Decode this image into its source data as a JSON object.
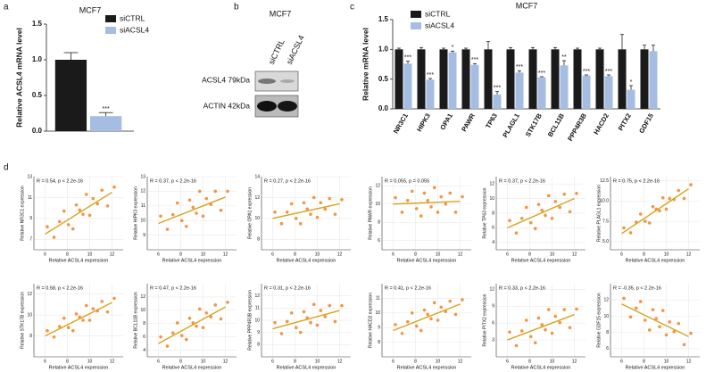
{
  "panel_labels": [
    "a",
    "b",
    "c",
    "d"
  ],
  "blot": {
    "title": "MCF7",
    "lanes": [
      "siCTRL",
      "siACSL4"
    ],
    "bands": [
      "ACSL4 79kDa",
      "ACTIN 42kDa"
    ]
  },
  "chart_data": [
    {
      "type": "bar",
      "title": "MCF7",
      "y_label": "Relative ACSL4 mRNA level",
      "legend": "upper right",
      "ylim": [
        0,
        1.5
      ],
      "yticks": [
        {
          "value": 0,
          "label": "0.0"
        },
        {
          "value": 0.5,
          "label": "0.5"
        },
        {
          "value": 1,
          "label": "1.0"
        },
        {
          "value": 1.5,
          "label": "1.5"
        }
      ],
      "series": [
        {
          "name": "siCTRL",
          "color": "#1a1a1a",
          "values": [
            1.0
          ],
          "errors": [
            0.1
          ]
        },
        {
          "name": "siACSL4",
          "color": "#a5bde3",
          "values": [
            0.21
          ],
          "errors": [
            0.05
          ],
          "annotations": [
            "***"
          ]
        }
      ]
    },
    {
      "type": "bar",
      "title": "MCF7",
      "y_label": "Relative mRNA level",
      "legend": "upper left",
      "categories": [
        "NR3C1",
        "HIPK3",
        "OPA1",
        "PAWR",
        "TP63",
        "PLAGL1",
        "STK17B",
        "BCL11B",
        "PPP4R3B",
        "HACD2",
        "PITX2",
        "GDF15"
      ],
      "ylim": [
        0,
        1.5
      ],
      "yticks": [
        {
          "value": 0,
          "label": "0.0"
        },
        {
          "value": 0.5,
          "label": "0.5"
        },
        {
          "value": 1,
          "label": "1.0"
        },
        {
          "value": 1.5,
          "label": "1.5"
        }
      ],
      "series": [
        {
          "name": "siCTRL",
          "color": "#1a1a1a",
          "values": [
            1.0,
            1.0,
            1.0,
            1.0,
            1.0,
            1.0,
            1.0,
            1.0,
            1.0,
            1.0,
            1.0,
            1.0
          ],
          "errors": [
            0.02,
            0.03,
            0.02,
            0.02,
            0.13,
            0.03,
            0.03,
            0.03,
            0.02,
            0.02,
            0.25,
            0.07
          ]
        },
        {
          "name": "siACSL4",
          "color": "#a5bde3",
          "values": [
            0.76,
            0.49,
            0.95,
            0.74,
            0.24,
            0.61,
            0.53,
            0.73,
            0.56,
            0.55,
            0.32,
            0.97
          ],
          "errors": [
            0.04,
            0.02,
            0.02,
            0.02,
            0.05,
            0.03,
            0.01,
            0.08,
            0.01,
            0.02,
            0.07,
            0.1
          ],
          "annotations": [
            "***",
            "***",
            "*",
            "***",
            "***",
            "***",
            "***",
            "**",
            "***",
            "***",
            "*",
            null
          ]
        }
      ]
    },
    {
      "type": "scatter",
      "title": "R = 0.54, p < 2.2e-16",
      "x_label": "Relative ACSL4 expression",
      "y_label": "Relative NR3C1 expression",
      "grid": true,
      "color": "#f28a30",
      "fit_color": "#d9a21b",
      "xlim": [
        5,
        13
      ],
      "xticks": [
        6,
        8,
        10,
        12
      ],
      "ylim": [
        6,
        13
      ],
      "yticks": [
        7,
        9,
        11,
        13
      ],
      "x": [
        6.2,
        6.8,
        7.3,
        7.7,
        8.1,
        8.5,
        8.8,
        9.1,
        9.4,
        9.7,
        10.0,
        10.3,
        10.7,
        11.1,
        11.6,
        12.2
      ],
      "y": [
        8.2,
        7.2,
        8.7,
        9.7,
        8.4,
        8.0,
        10.3,
        9.8,
        9.4,
        11.3,
        9.3,
        10.9,
        10.4,
        11.7,
        10.2,
        12.0
      ],
      "fit": {
        "x": [
          6,
          12
        ],
        "y": [
          7.5,
          11.5
        ]
      }
    },
    {
      "type": "scatter",
      "title": "R = 0.37, p < 2.2e-16",
      "x_label": "Relative ACSL4 expression",
      "y_label": "Relative HIPK3 expression",
      "grid": true,
      "color": "#f28a30",
      "fit_color": "#d9a21b",
      "xlim": [
        5,
        13
      ],
      "xticks": [
        6,
        8,
        10,
        12
      ],
      "ylim": [
        8,
        13
      ],
      "yticks": [
        9,
        10,
        11,
        12,
        13
      ],
      "x": [
        6.2,
        6.8,
        7.3,
        7.7,
        8.1,
        8.5,
        8.8,
        9.1,
        9.4,
        9.7,
        10.0,
        10.3,
        10.7,
        11.1,
        11.6,
        12.2
      ],
      "y": [
        10.3,
        9.4,
        10.4,
        11.2,
        10.0,
        9.6,
        11.4,
        10.9,
        10.5,
        12.0,
        10.3,
        11.5,
        11.1,
        12.0,
        10.7,
        12.0
      ],
      "fit": {
        "x": [
          6,
          12
        ],
        "y": [
          9.8,
          11.6
        ]
      }
    },
    {
      "type": "scatter",
      "title": "R = 0.27, p < 2.2e-16",
      "x_label": "Relative ACSL4 expression",
      "y_label": "Relative OPA1 expression",
      "grid": true,
      "color": "#f28a30",
      "fit_color": "#d9a21b",
      "xlim": [
        5,
        13
      ],
      "xticks": [
        6,
        8,
        10,
        12
      ],
      "ylim": [
        7,
        14
      ],
      "yticks": [
        8,
        10,
        12,
        14
      ],
      "x": [
        6.2,
        6.8,
        7.3,
        7.7,
        8.1,
        8.5,
        8.8,
        9.1,
        9.4,
        9.7,
        10.0,
        10.3,
        10.7,
        11.1,
        11.6,
        12.2
      ],
      "y": [
        10.6,
        9.5,
        10.6,
        11.4,
        10.0,
        9.5,
        11.5,
        10.9,
        10.4,
        12.0,
        10.1,
        11.5,
        10.9,
        11.9,
        10.4,
        11.8
      ],
      "fit": {
        "x": [
          6,
          12
        ],
        "y": [
          10.0,
          11.4
        ]
      }
    },
    {
      "type": "scatter",
      "title": "R = 0.055, p = 0.055",
      "x_label": "Relative ACSL4 expression",
      "y_label": "Relative PAWR expression",
      "grid": true,
      "color": "#f28a30",
      "fit_color": "#d9a21b",
      "xlim": [
        5,
        13
      ],
      "xticks": [
        6,
        8,
        10,
        12
      ],
      "ylim": [
        5,
        13
      ],
      "yticks": [
        6,
        8,
        10,
        12
      ],
      "x": [
        6.2,
        6.8,
        7.3,
        7.7,
        8.1,
        8.5,
        8.8,
        9.1,
        9.4,
        9.7,
        10.0,
        10.3,
        10.7,
        11.1,
        11.6,
        12.2
      ],
      "y": [
        10.7,
        9.1,
        10.4,
        11.4,
        9.5,
        8.7,
        11.2,
        10.4,
        9.7,
        11.8,
        9.1,
        10.8,
        10.0,
        11.2,
        9.1,
        10.8
      ],
      "fit": {
        "x": [
          6,
          12
        ],
        "y": [
          10.0,
          10.3
        ]
      }
    },
    {
      "type": "scatter",
      "title": "R = 0.37, p < 2.2e-16",
      "x_label": "Relative ACSL4 expression",
      "y_label": "Relative TP63 expression",
      "grid": true,
      "color": "#f28a30",
      "fit_color": "#d9a21b",
      "xlim": [
        5,
        13
      ],
      "xticks": [
        6,
        8,
        10,
        12
      ],
      "ylim": [
        3,
        13
      ],
      "yticks": [
        4,
        6,
        8,
        10,
        12
      ],
      "x": [
        6.2,
        6.8,
        7.3,
        7.7,
        8.1,
        8.5,
        8.8,
        9.1,
        9.4,
        9.7,
        10.0,
        10.3,
        10.7,
        11.1,
        11.6,
        12.2
      ],
      "y": [
        7.0,
        5.3,
        7.3,
        8.8,
        6.7,
        5.9,
        9.2,
        8.4,
        7.7,
        10.4,
        7.3,
        9.6,
        8.8,
        10.6,
        8.2,
        10.7
      ],
      "fit": {
        "x": [
          6,
          12
        ],
        "y": [
          6,
          10
        ]
      }
    },
    {
      "type": "scatter",
      "title": "R = 0.75, p < 2.2e-16",
      "x_label": "Relative ACSL4 expression",
      "y_label": "Relative PLAGL1 expression",
      "grid": true,
      "color": "#f28a30",
      "fit_color": "#d9a21b",
      "xlim": [
        5,
        13
      ],
      "xticks": [
        6,
        8,
        10,
        12
      ],
      "ylim": [
        4,
        13
      ],
      "yticks": [
        {
          "value": 5,
          "label": "5.0"
        },
        {
          "value": 7.5,
          "label": "7.5"
        },
        {
          "value": 10,
          "label": "10.0"
        },
        {
          "value": 12.5,
          "label": "12.5"
        }
      ],
      "x": [
        6.2,
        6.8,
        7.3,
        7.7,
        8.1,
        8.5,
        8.8,
        9.1,
        9.4,
        9.7,
        10.0,
        10.3,
        10.7,
        11.1,
        11.6,
        12.2
      ],
      "y": [
        6.7,
        6.1,
        7.4,
        8.4,
        7.5,
        7.3,
        9.3,
        9.0,
        8.8,
        10.4,
        9.0,
        10.3,
        10.2,
        11.3,
        10.3,
        12.0
      ],
      "fit": {
        "x": [
          6,
          12
        ],
        "y": [
          6,
          11.5
        ]
      }
    },
    {
      "type": "scatter",
      "title": "R = 0.58, p < 2.2e-16",
      "x_label": "Relative ACSL4 expression",
      "y_label": "Relative STK17B expression",
      "grid": true,
      "color": "#f28a30",
      "fit_color": "#d9a21b",
      "xlim": [
        5,
        13
      ],
      "xticks": [
        6,
        8,
        10,
        12
      ],
      "ylim": [
        6,
        13
      ],
      "yticks": [
        8,
        10,
        12
      ],
      "x": [
        6.2,
        6.8,
        7.3,
        7.7,
        8.1,
        8.5,
        8.8,
        9.1,
        9.4,
        9.7,
        10.0,
        10.3,
        10.7,
        11.1,
        11.6,
        12.2
      ],
      "y": [
        8.5,
        7.9,
        8.9,
        9.7,
        8.8,
        8.5,
        10.1,
        9.8,
        9.5,
        10.9,
        9.5,
        10.6,
        10.4,
        11.3,
        10.3,
        11.6
      ],
      "fit": {
        "x": [
          6,
          12
        ],
        "y": [
          8,
          11.2
        ]
      }
    },
    {
      "type": "scatter",
      "title": "R = 0.47, p < 2.2e-16",
      "x_label": "Relative ACSL4 expression",
      "y_label": "Relative BCL11B expression",
      "grid": true,
      "color": "#f28a30",
      "fit_color": "#d9a21b",
      "xlim": [
        5,
        13
      ],
      "xticks": [
        6,
        8,
        10,
        12
      ],
      "ylim": [
        3,
        14
      ],
      "yticks": [
        4,
        6,
        8,
        10,
        12
      ],
      "x": [
        6.2,
        6.8,
        7.3,
        7.7,
        8.1,
        8.5,
        8.8,
        9.1,
        9.4,
        9.7,
        10.0,
        10.3,
        10.7,
        11.1,
        11.6,
        12.2
      ],
      "y": [
        6.0,
        4.6,
        6.6,
        8.1,
        6.2,
        5.6,
        8.8,
        8.1,
        7.6,
        10.2,
        7.4,
        9.6,
        9.0,
        10.8,
        8.7,
        11.2
      ],
      "fit": {
        "x": [
          6,
          12
        ],
        "y": [
          5,
          10.5
        ]
      }
    },
    {
      "type": "scatter",
      "title": "R = 0.31, p < 2.2e-16",
      "x_label": "Relative ACSL4 expression",
      "y_label": "Relative PPP4R3B expression",
      "grid": true,
      "color": "#f28a30",
      "fit_color": "#d9a21b",
      "xlim": [
        5,
        13
      ],
      "xticks": [
        6,
        8,
        10,
        12
      ],
      "ylim": [
        7,
        13
      ],
      "yticks": [
        8,
        9,
        10,
        11,
        12
      ],
      "x": [
        6.2,
        6.8,
        7.3,
        7.7,
        8.1,
        8.5,
        8.8,
        9.1,
        9.4,
        9.7,
        10.0,
        10.3,
        10.7,
        11.1,
        11.6,
        12.2
      ],
      "y": [
        9.8,
        8.9,
        9.9,
        10.6,
        9.4,
        9.0,
        10.7,
        10.2,
        9.8,
        11.3,
        9.6,
        10.8,
        10.3,
        11.2,
        9.9,
        11.2
      ],
      "fit": {
        "x": [
          6,
          12
        ],
        "y": [
          9.3,
          10.8
        ]
      }
    },
    {
      "type": "scatter",
      "title": "R = 0.41, p < 2.2e-16",
      "x_label": "Relative ACSL4 expression",
      "y_label": "Relative HACD2 expression",
      "grid": true,
      "color": "#f28a30",
      "fit_color": "#d9a21b",
      "xlim": [
        5,
        13
      ],
      "xticks": [
        6,
        8,
        10,
        12
      ],
      "ylim": [
        7,
        12
      ],
      "yticks": [
        8,
        9,
        10,
        11
      ],
      "x": [
        6.2,
        6.8,
        7.3,
        7.7,
        8.1,
        8.5,
        8.8,
        9.1,
        9.4,
        9.7,
        10.0,
        10.3,
        10.7,
        11.1,
        11.6,
        12.2
      ],
      "y": [
        9.2,
        8.6,
        9.4,
        10.0,
        9.1,
        8.8,
        10.2,
        9.9,
        9.6,
        10.7,
        9.5,
        10.4,
        10.1,
        10.8,
        9.9,
        10.9
      ],
      "fit": {
        "x": [
          6,
          12
        ],
        "y": [
          8.8,
          10.6
        ]
      }
    },
    {
      "type": "scatter",
      "title": "R = 0.33, p < 2.2e-16",
      "x_label": "Relative ACSL4 expression",
      "y_label": "Relative PITX2 expression",
      "grid": true,
      "color": "#f28a30",
      "fit_color": "#d9a21b",
      "xlim": [
        5,
        13
      ],
      "xticks": [
        6,
        8,
        10,
        12
      ],
      "ylim": [
        0,
        13
      ],
      "yticks": [
        3,
        6,
        9,
        12
      ],
      "x": [
        6.2,
        6.8,
        7.3,
        7.7,
        8.1,
        8.5,
        8.8,
        9.1,
        9.4,
        9.7,
        10.0,
        10.3,
        10.7,
        11.1,
        11.6,
        12.2
      ],
      "y": [
        4.4,
        2.0,
        4.6,
        6.5,
        3.6,
        2.5,
        6.9,
        5.7,
        4.8,
        8.4,
        4.2,
        7.2,
        6.1,
        8.4,
        5.2,
        8.5
      ],
      "fit": {
        "x": [
          6,
          12
        ],
        "y": [
          3,
          7.5
        ]
      }
    },
    {
      "type": "scatter",
      "title": "R = -0.35, p < 2.2e-16",
      "x_label": "Relative ACSL4 expression",
      "y_label": "Relative GDF15 expression",
      "grid": true,
      "color": "#f28a30",
      "fit_color": "#d9a21b",
      "xlim": [
        5,
        13
      ],
      "xticks": [
        6,
        8,
        10,
        12
      ],
      "ylim": [
        5,
        14
      ],
      "yticks": [
        6,
        8,
        10,
        12
      ],
      "x": [
        6.2,
        6.8,
        7.3,
        7.7,
        8.1,
        8.5,
        8.8,
        9.1,
        9.4,
        9.7,
        10.0,
        10.3,
        10.7,
        11.1,
        11.6,
        12.2
      ],
      "y": [
        12.2,
        9.9,
        11.0,
        11.8,
        9.5,
        8.3,
        10.8,
        9.7,
        8.7,
        10.7,
        7.7,
        9.3,
        8.1,
        9.1,
        6.5,
        7.9
      ],
      "fit": {
        "x": [
          6,
          12
        ],
        "y": [
          11.5,
          7.5
        ]
      }
    }
  ]
}
